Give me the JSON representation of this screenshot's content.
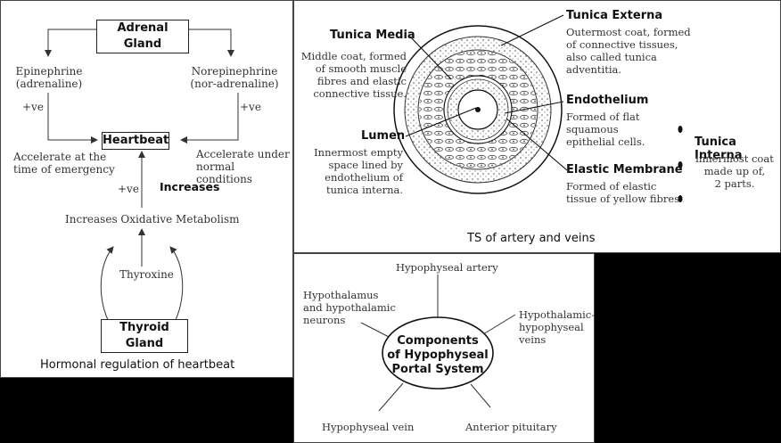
{
  "heartbeat": {
    "adrenal": "Adrenal Gland",
    "epinephrine": "Epinephrine",
    "epinephrine_alt": "(adrenaline)",
    "norepinephrine": "Norepinephrine",
    "norepinephrine_alt": "(nor-adrenaline)",
    "pos_left": "+ve",
    "pos_right": "+ve",
    "heartbeat": "Heartbeat",
    "accel_left_1": "Accelerate at the",
    "accel_left_2": "time of emergency",
    "accel_right_1": "Accelerate under",
    "accel_right_2": "normal conditions",
    "pos_mid": "+ve",
    "increases": "Increases",
    "oxidative": "Increases Oxidative Metabolism",
    "thyroxine": "Thyroxine",
    "thyroid": "Thyroid Gland",
    "caption": "Hormonal regulation of heartbeat"
  },
  "artery": {
    "media_title": "Tunica Media",
    "media_desc": [
      "Middle coat, formed",
      "of smooth muscle",
      "fibres and elastic",
      "connective tissue."
    ],
    "lumen_title": "Lumen",
    "lumen_desc": [
      "Innermost empty",
      "space lined by",
      "endothelium of",
      "tunica interna."
    ],
    "externa_title": "Tunica Externa",
    "externa_desc": [
      "Outermost coat, formed",
      "of connective tissues,",
      "also called tunica",
      "adventitia."
    ],
    "endo_title": "Endothelium",
    "endo_desc": [
      "Formed of flat",
      "squamous",
      "epithelial cells."
    ],
    "elastic_title": "Elastic Membrane",
    "elastic_desc": [
      "Formed of elastic",
      "tissue of yellow fibres"
    ],
    "interna_title": "Tunica Interna",
    "interna_desc": [
      "innermost coat",
      "made up of,",
      "2 parts."
    ],
    "caption": "TS of artery and veins"
  },
  "portal": {
    "center": [
      "Components",
      "of Hypophyseal",
      "Portal System"
    ],
    "artery": "Hypophyseal artery",
    "hypothalamus": [
      "Hypothalamus",
      "and hypothalamic",
      "neurons"
    ],
    "hh_veins": [
      "Hypothalamic-",
      "hypophyseal",
      "veins"
    ],
    "vein": "Hypophyseal vein",
    "anterior": "Anterior pituitary"
  }
}
